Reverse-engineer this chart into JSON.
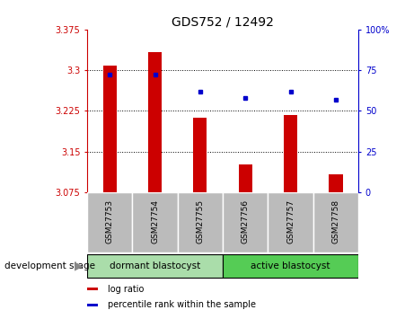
{
  "title": "GDS752 / 12492",
  "samples": [
    "GSM27753",
    "GSM27754",
    "GSM27755",
    "GSM27756",
    "GSM27757",
    "GSM27758"
  ],
  "log_ratio": [
    3.308,
    3.333,
    3.213,
    3.127,
    3.218,
    3.108
  ],
  "percentile_rank": [
    72,
    72,
    62,
    58,
    62,
    57
  ],
  "ylim_left": [
    3.075,
    3.375
  ],
  "ylim_right": [
    0,
    100
  ],
  "yticks_left": [
    3.075,
    3.15,
    3.225,
    3.3,
    3.375
  ],
  "yticks_right": [
    0,
    25,
    50,
    75,
    100
  ],
  "ytick_labels_left": [
    "3.075",
    "3.15",
    "3.225",
    "3.3",
    "3.375"
  ],
  "ytick_labels_right": [
    "0",
    "25",
    "50",
    "75",
    "100%"
  ],
  "bar_color": "#cc0000",
  "dot_color": "#0000cc",
  "bar_base": 3.075,
  "groups": [
    {
      "label": "dormant blastocyst",
      "start": 0,
      "end": 3,
      "color": "#aaddaa"
    },
    {
      "label": "active blastocyst",
      "start": 3,
      "end": 6,
      "color": "#55cc55"
    }
  ],
  "group_label_prefix": "development stage",
  "legend_items": [
    {
      "label": "log ratio",
      "color": "#cc0000"
    },
    {
      "label": "percentile rank within the sample",
      "color": "#0000cc"
    }
  ],
  "grid_color": "black",
  "plot_bg": "#ffffff",
  "tick_bg": "#bbbbbb",
  "bar_width": 0.3
}
